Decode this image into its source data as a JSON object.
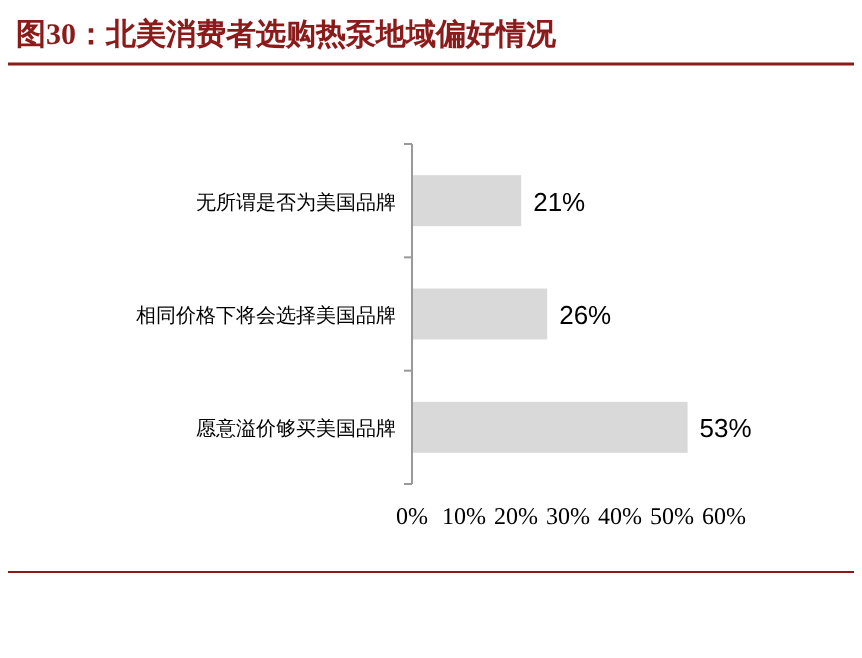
{
  "chart_data": {
    "type": "bar",
    "orientation": "horizontal",
    "title": "图30：北美消费者选购热泵地域偏好情况",
    "categories": [
      "无所谓是否为美国品牌",
      "相同价格下将会选择美国品牌",
      "愿意溢价够买美国品牌"
    ],
    "values": [
      21,
      26,
      53
    ],
    "color": "#d9d9d9",
    "value_labels": [
      "21%",
      "26%",
      "53%"
    ],
    "xlim": [
      0,
      60
    ],
    "xticks": [
      {
        "value": 0,
        "label": "0%"
      },
      {
        "value": 10,
        "label": "10%"
      },
      {
        "value": 20,
        "label": "20%"
      },
      {
        "value": 30,
        "label": "30%"
      },
      {
        "value": 40,
        "label": "40%"
      },
      {
        "value": 50,
        "label": "50%"
      },
      {
        "value": 60,
        "label": "60%"
      }
    ],
    "grid": false
  }
}
